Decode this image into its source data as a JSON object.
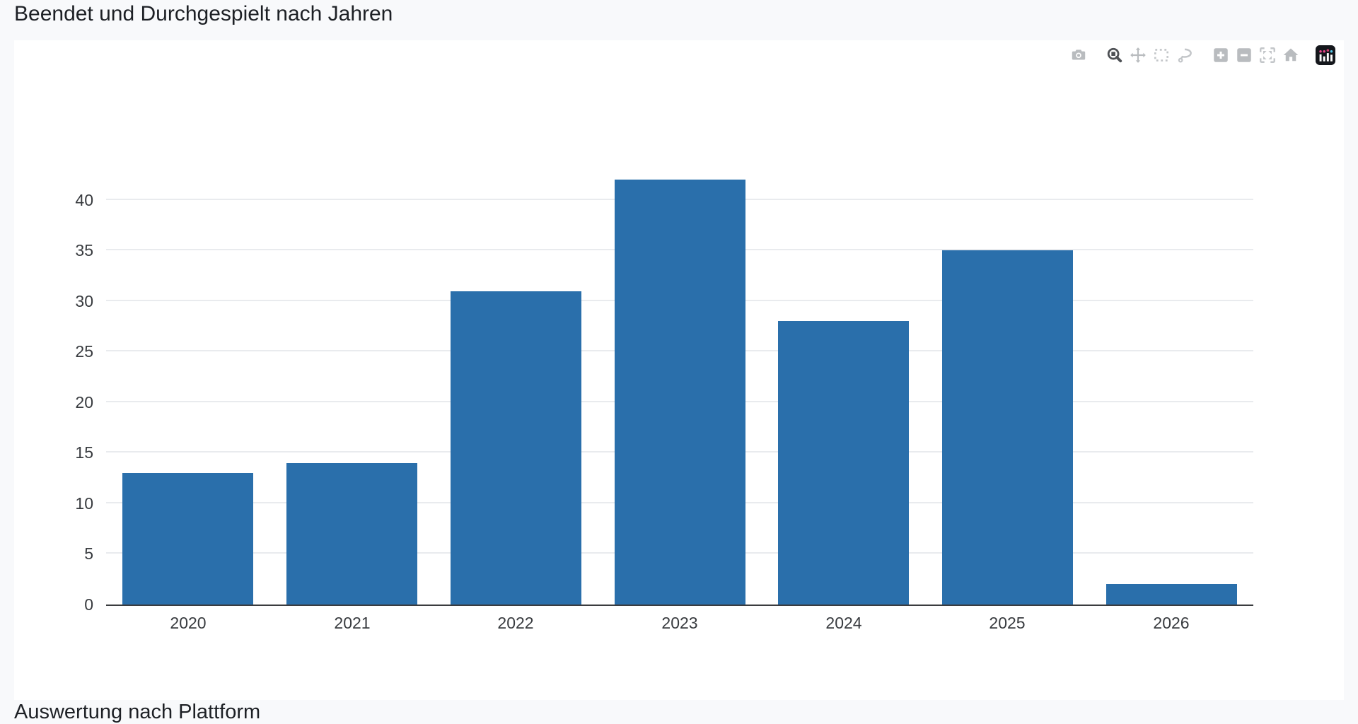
{
  "page": {
    "title": "Beendet und Durchgespielt nach Jahren",
    "background_color": "#f8f9fb",
    "card_color": "#ffffff",
    "bottom_truncated_heading": "Auswertung nach Plattform"
  },
  "modebar": {
    "icons": [
      "camera",
      "zoom",
      "pan",
      "box-select",
      "lasso",
      "zoom-in",
      "zoom-out",
      "autoscale",
      "reset-home",
      "plotly-logo"
    ],
    "active_icon": "zoom",
    "icon_color": "#b9bcbf",
    "active_icon_color": "#4e5155"
  },
  "chart_data": {
    "type": "bar",
    "title": "Beendet und Durchgespielt nach Jahren",
    "categories": [
      "2020",
      "2021",
      "2022",
      "2023",
      "2024",
      "2025",
      "2026"
    ],
    "values": [
      13,
      14,
      31,
      42,
      28,
      35,
      2
    ],
    "xlabel": "",
    "ylabel": "",
    "yticks": [
      0,
      5,
      10,
      15,
      20,
      25,
      30,
      35,
      40
    ],
    "ylim": [
      0,
      44.6
    ],
    "grid": true,
    "gridcolor": "#e9ebee",
    "axis_color": "#3a3c3f",
    "tick_label_color": "#383b3f",
    "bar_color": "#2a6fab",
    "legend": "none"
  }
}
